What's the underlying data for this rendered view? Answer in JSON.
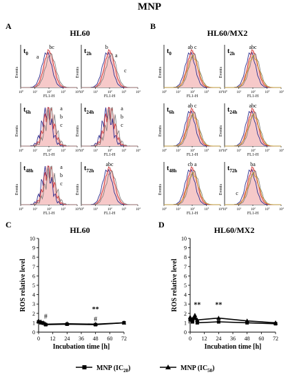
{
  "figure": {
    "title": "MNP",
    "legend": [
      {
        "label": "MNP (IC",
        "sub": "20",
        "close": ")",
        "marker": "square"
      },
      {
        "label": "MNP (IC",
        "sub": "50",
        "close": ")",
        "marker": "triangle"
      }
    ]
  },
  "panels": {
    "A": {
      "letter": "A",
      "title": "HL60"
    },
    "B": {
      "letter": "B",
      "title": "HL60/MX2"
    },
    "C": {
      "letter": "C",
      "title": "HL60"
    },
    "D": {
      "letter": "D",
      "title": "HL60/MX2"
    }
  },
  "histograms": {
    "ylabel": "Events",
    "xlabel": "FL1-H",
    "ticks": [
      "10",
      "0",
      "10",
      "1",
      "10",
      "2",
      "10",
      "3",
      "10",
      "4"
    ],
    "tick_base": "10",
    "tick_exps": [
      "0",
      "1",
      "2",
      "3",
      "4"
    ],
    "A": [
      {
        "t": "t",
        "sub": "0",
        "labels": [
          "a",
          "bc"
        ]
      },
      {
        "t": "t",
        "sub": "2h",
        "labels": [
          "b",
          "a",
          "c"
        ]
      },
      {
        "t": "t",
        "sub": "6h",
        "labels": [
          "a",
          "b",
          "c"
        ]
      },
      {
        "t": "t",
        "sub": "24h",
        "labels": [
          "a",
          "b",
          "c"
        ]
      },
      {
        "t": "t",
        "sub": "48h",
        "labels": [
          "a",
          "b",
          "c"
        ]
      },
      {
        "t": "t",
        "sub": "72h",
        "labels": [
          "abc"
        ]
      }
    ],
    "B": [
      {
        "t": "t",
        "sub": "0",
        "labels": [
          "ab c"
        ]
      },
      {
        "t": "t",
        "sub": "2h",
        "labels": [
          "abc"
        ]
      },
      {
        "t": "t",
        "sub": "6h",
        "labels": [
          "ab c"
        ]
      },
      {
        "t": "t",
        "sub": "24h",
        "labels": [
          "abc"
        ]
      },
      {
        "t": "t",
        "sub": "48h",
        "labels": [
          "cb a"
        ]
      },
      {
        "t": "t",
        "sub": "72h",
        "labels": [
          "ba",
          "c"
        ]
      }
    ]
  },
  "colors": {
    "a": "#2d2e8f",
    "b": "#d43a3a",
    "c": "#7a7a7a",
    "d": "#c9a227",
    "fill": "#f6c9c9"
  },
  "chart_data": [
    {
      "type": "line",
      "panel": "C",
      "title": "HL60",
      "xlabel": "Incubation time [h]",
      "ylabel": "ROS relative level",
      "xlim": [
        0,
        72
      ],
      "ylim": [
        0,
        10
      ],
      "xticks": [
        0,
        12,
        24,
        36,
        48,
        60,
        72
      ],
      "yticks": [
        0,
        1,
        2,
        3,
        4,
        5,
        6,
        7,
        8,
        9,
        10
      ],
      "series": [
        {
          "name": "MNP (IC20)",
          "marker": "square",
          "x": [
            0,
            2,
            4,
            6,
            24,
            48,
            72
          ],
          "y": [
            1.1,
            1.0,
            0.95,
            0.8,
            0.85,
            0.8,
            1.0
          ]
        },
        {
          "name": "MNP (IC50)",
          "marker": "triangle",
          "x": [
            0,
            2,
            4,
            6,
            24,
            48,
            72
          ],
          "y": [
            1.2,
            1.1,
            1.0,
            0.85,
            0.9,
            0.85,
            1.0
          ]
        }
      ],
      "annotations": [
        {
          "text": "#",
          "x": 6,
          "y": 1.45
        },
        {
          "text": "**",
          "x": 48,
          "y": 2.2
        },
        {
          "text": "#",
          "x": 48,
          "y": 1.15
        }
      ]
    },
    {
      "type": "line",
      "panel": "D",
      "title": "HL60/MX2",
      "xlabel": "Incubation time [h]",
      "ylabel": "ROS relative level",
      "xlim": [
        0,
        72
      ],
      "ylim": [
        0,
        10
      ],
      "xticks": [
        0,
        12,
        24,
        36,
        48,
        60,
        72
      ],
      "yticks": [
        0,
        1,
        2,
        3,
        4,
        5,
        6,
        7,
        8,
        9,
        10
      ],
      "series": [
        {
          "name": "MNP (IC20)",
          "marker": "square",
          "x": [
            0,
            2,
            4,
            6,
            24,
            48,
            72
          ],
          "y": [
            1.3,
            1.1,
            1.5,
            1.0,
            1.1,
            1.0,
            0.9
          ]
        },
        {
          "name": "MNP (IC50)",
          "marker": "triangle",
          "x": [
            0,
            2,
            4,
            6,
            24,
            48,
            72
          ],
          "y": [
            1.6,
            1.4,
            1.8,
            1.3,
            1.5,
            1.2,
            1.0
          ]
        }
      ],
      "annotations": [
        {
          "text": "**",
          "x": 6,
          "y": 2.7
        },
        {
          "text": "**",
          "x": 24,
          "y": 2.7
        }
      ]
    }
  ]
}
